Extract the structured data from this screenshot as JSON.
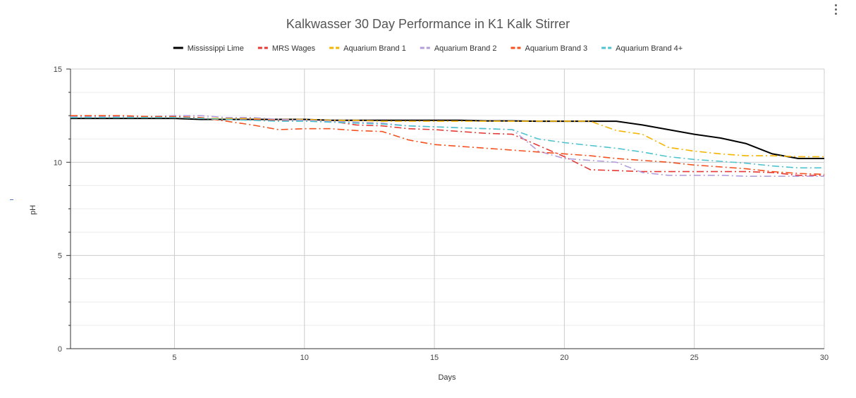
{
  "chart_data": {
    "type": "line",
    "title": "Kalkwasser 30 Day Performance in K1 Kalk Stirrer",
    "xlabel": "Days",
    "ylabel": "pH",
    "xlim": [
      1,
      30
    ],
    "ylim": [
      0,
      15
    ],
    "x_ticks": [
      5,
      10,
      15,
      20,
      25,
      30
    ],
    "y_ticks": [
      0,
      5,
      10,
      15
    ],
    "grid": true,
    "legend_position": "top",
    "x": [
      1,
      2,
      3,
      4,
      5,
      6,
      7,
      8,
      9,
      10,
      11,
      12,
      13,
      14,
      15,
      16,
      17,
      18,
      19,
      20,
      21,
      22,
      23,
      24,
      25,
      26,
      27,
      28,
      29,
      30
    ],
    "series": [
      {
        "name": "Mississippi Lime",
        "color": "#000000",
        "dash": "solid",
        "values": [
          12.35,
          12.35,
          12.35,
          12.35,
          12.35,
          12.3,
          12.3,
          12.3,
          12.3,
          12.3,
          12.25,
          12.25,
          12.25,
          12.25,
          12.25,
          12.25,
          12.22,
          12.22,
          12.2,
          12.2,
          12.2,
          12.2,
          12.0,
          11.75,
          11.5,
          11.3,
          11.0,
          10.45,
          10.2,
          10.2
        ]
      },
      {
        "name": "MRS Wages",
        "color": "#e53935",
        "dash": "dashdot",
        "values": [
          12.45,
          12.45,
          12.45,
          12.45,
          12.4,
          12.35,
          12.3,
          12.3,
          12.25,
          12.25,
          12.2,
          12.0,
          11.95,
          11.8,
          11.75,
          11.65,
          11.55,
          11.5,
          10.9,
          10.3,
          9.6,
          9.55,
          9.5,
          9.5,
          9.5,
          9.5,
          9.5,
          9.45,
          9.3,
          9.3
        ]
      },
      {
        "name": "Aquarium Brand 1",
        "color": "#f4b400",
        "dash": "dashdot",
        "values": [
          12.4,
          12.4,
          12.4,
          12.4,
          12.4,
          12.35,
          12.35,
          12.35,
          12.3,
          12.3,
          12.25,
          12.25,
          12.2,
          12.2,
          12.2,
          12.2,
          12.2,
          12.2,
          12.2,
          12.2,
          12.2,
          11.7,
          11.5,
          10.8,
          10.6,
          10.45,
          10.35,
          10.35,
          10.3,
          10.3
        ]
      },
      {
        "name": "Aquarium Brand 2",
        "color": "#b39ddb",
        "dash": "dashdot",
        "values": [
          12.45,
          12.45,
          12.45,
          12.45,
          12.5,
          12.5,
          12.4,
          12.4,
          12.3,
          12.25,
          12.2,
          12.15,
          12.1,
          11.95,
          11.9,
          11.85,
          11.8,
          11.75,
          10.6,
          10.2,
          10.1,
          10.0,
          9.45,
          9.3,
          9.3,
          9.3,
          9.25,
          9.25,
          9.25,
          9.25
        ]
      },
      {
        "name": "Aquarium Brand 3",
        "color": "#f4511e",
        "dash": "dashdot",
        "values": [
          12.5,
          12.5,
          12.5,
          12.45,
          12.45,
          12.4,
          12.2,
          12.0,
          11.75,
          11.8,
          11.8,
          11.7,
          11.65,
          11.2,
          10.95,
          10.85,
          10.75,
          10.65,
          10.55,
          10.45,
          10.35,
          10.2,
          10.1,
          10.0,
          9.85,
          9.75,
          9.65,
          9.5,
          9.4,
          9.35
        ]
      },
      {
        "name": "Aquarium Brand 4+",
        "color": "#4ec3cf",
        "dash": "dashdot",
        "values": [
          12.4,
          12.4,
          12.4,
          12.4,
          12.4,
          12.35,
          12.3,
          12.25,
          12.2,
          12.2,
          12.15,
          12.1,
          12.05,
          11.95,
          11.9,
          11.85,
          11.8,
          11.75,
          11.25,
          11.05,
          10.9,
          10.75,
          10.55,
          10.3,
          10.15,
          10.05,
          9.95,
          9.8,
          9.7,
          9.7
        ]
      }
    ]
  }
}
